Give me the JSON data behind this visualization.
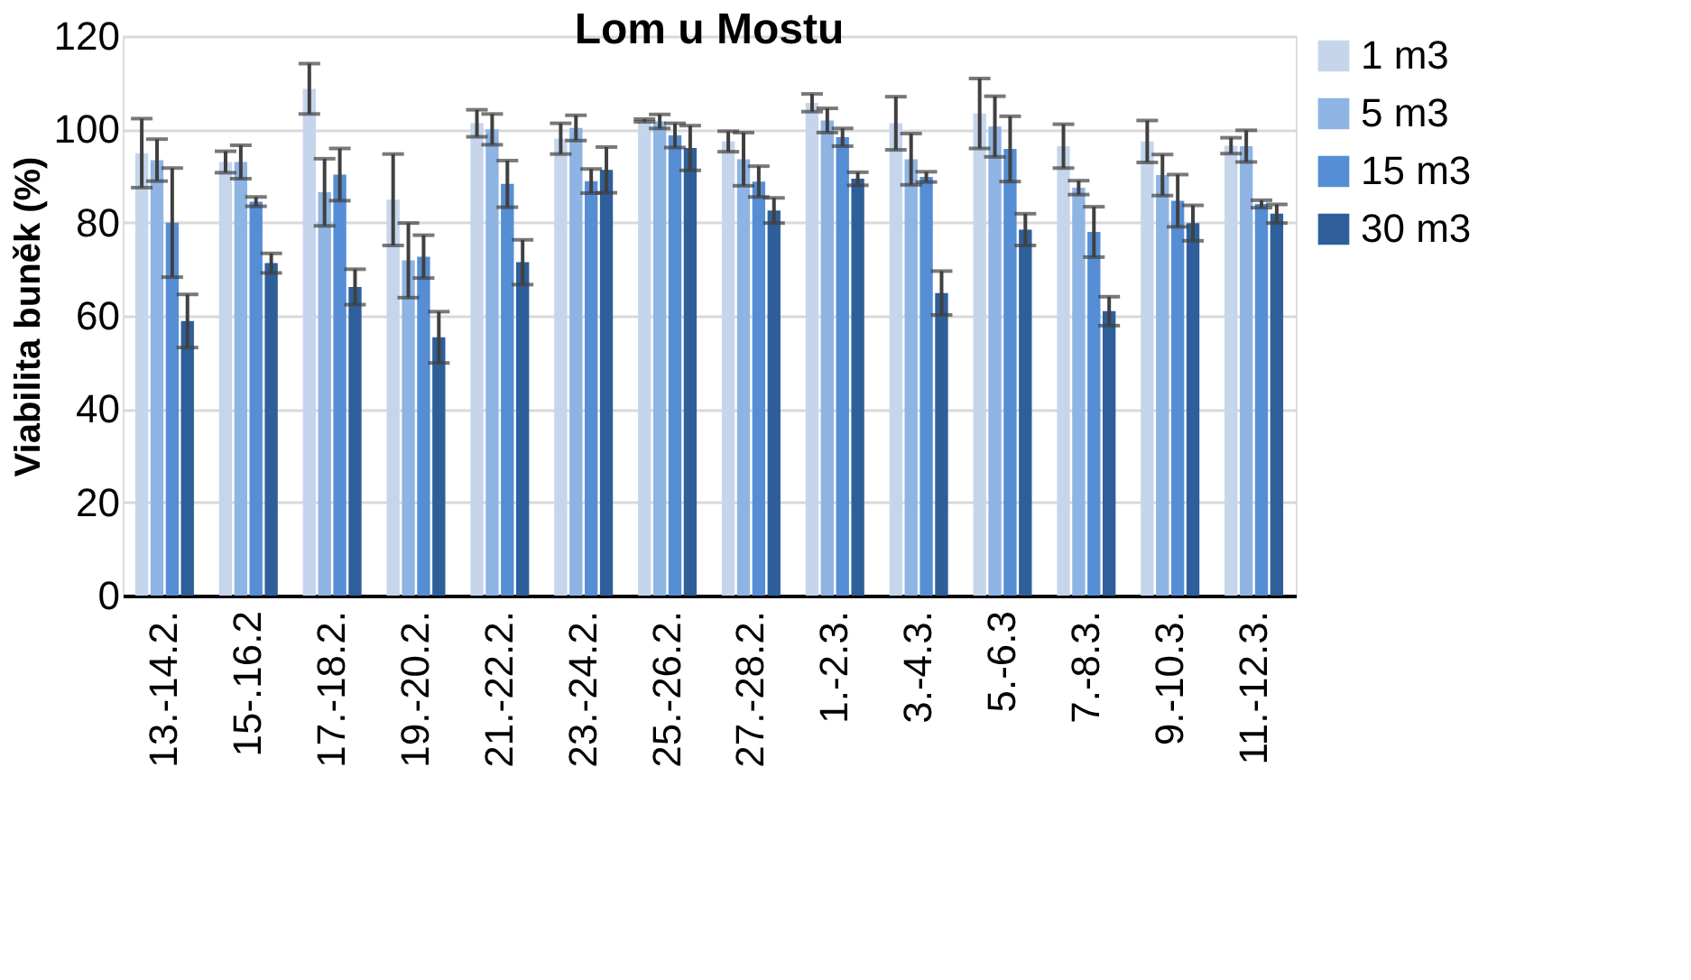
{
  "chart_data": {
    "type": "bar",
    "title": "Lom u Mostu",
    "ylabel": "Viabilita buněk (%)",
    "categories": [
      "13.-14.2.",
      "15-.16.2",
      "17.-18.2.",
      "19.-20.2.",
      "21.-22.2.",
      "23.-24.2.",
      "25.-26.2.",
      "27.-28.2.",
      "1.-2.3.",
      "3.-4.3.",
      "5.-6.3",
      "7.-8.3.",
      "9.-10.3.",
      "11.-12.3."
    ],
    "series": [
      {
        "name": "1 m3",
        "color": "#c5d5ec",
        "values": [
          94.9,
          93,
          108.7,
          84.9,
          101.3,
          98,
          101.9,
          97.4,
          105.7,
          101.3,
          103.4,
          96.4,
          97.4,
          96.5
        ],
        "errors": [
          7.4,
          2.3,
          5.4,
          9.8,
          2.9,
          3.3,
          0.3,
          2.2,
          1.9,
          5.7,
          7.5,
          4.7,
          4.5,
          1.7
        ]
      },
      {
        "name": "5 m3",
        "color": "#8eb4e3",
        "values": [
          93.4,
          93,
          86.5,
          71.9,
          100,
          100.3,
          101.7,
          93.6,
          101.9,
          93.6,
          100.6,
          87.5,
          90.2,
          96.4
        ],
        "errors": [
          4.5,
          3.6,
          7.2,
          8,
          3.3,
          2.7,
          1.5,
          5.7,
          2.6,
          5.5,
          6.5,
          1.5,
          4.4,
          3.4
        ]
      },
      {
        "name": "15 m3",
        "color": "#558ed5",
        "values": [
          80,
          84.5,
          90.3,
          72.7,
          88.3,
          88.9,
          98.7,
          88.8,
          98.3,
          89.8,
          95.8,
          78,
          84.7,
          84
        ],
        "errors": [
          11.7,
          1,
          5.6,
          4.6,
          5,
          2.6,
          2.6,
          3.3,
          1.9,
          1.1,
          7,
          5.4,
          5.6,
          0.8
        ]
      },
      {
        "name": "30 m3",
        "color": "#2e5f9a",
        "values": [
          58.9,
          71.3,
          66.2,
          55.4,
          71.5,
          91.3,
          96,
          82.6,
          89.4,
          64.9,
          78.5,
          61,
          79.9,
          81.9
        ],
        "errors": [
          5.7,
          2.1,
          3.8,
          5.5,
          4.8,
          4.9,
          4.8,
          2.7,
          1.4,
          4.7,
          3.4,
          3.1,
          3.8,
          2
        ]
      }
    ],
    "ylim": [
      0,
      120
    ],
    "yticks": [
      0,
      20,
      40,
      60,
      80,
      100,
      120
    ],
    "grid": "y",
    "legend": "right"
  }
}
